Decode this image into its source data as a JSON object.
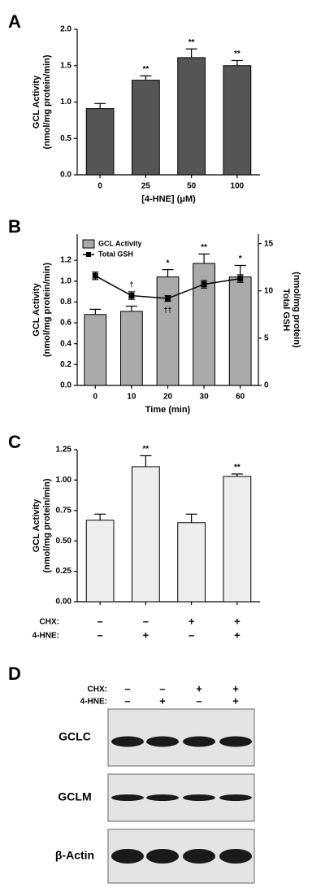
{
  "chart_data": [
    {
      "type": "bar",
      "panel": "A",
      "categories": [
        "0",
        "25",
        "50",
        "100"
      ],
      "values": [
        0.91,
        1.3,
        1.61,
        1.5
      ],
      "errors": [
        0.07,
        0.06,
        0.12,
        0.07
      ],
      "significance": [
        null,
        "**",
        "**",
        "**"
      ],
      "color": "#555555",
      "ylim": [
        0,
        2.0
      ],
      "yticks": [
        {
          "value": 0,
          "label": "0.0"
        },
        {
          "value": 0.5,
          "label": "0.5"
        },
        {
          "value": 1.0,
          "label": "1.0"
        },
        {
          "value": 1.5,
          "label": "1.5"
        },
        {
          "value": 2.0,
          "label": "2.0"
        }
      ],
      "ylabel": [
        "GCL Activity",
        "(nmol/mg protein/min)"
      ],
      "xlabel": "[4-HNE] (μM)"
    },
    {
      "type": "combo",
      "panel": "B",
      "categories": [
        "0",
        "10",
        "20",
        "30",
        "60"
      ],
      "series": [
        {
          "name": "GCL Activity",
          "type": "bar",
          "color": "#aaaaaa",
          "values": [
            0.68,
            0.71,
            1.04,
            1.17,
            1.04
          ],
          "errors": [
            0.05,
            0.05,
            0.07,
            0.09,
            0.11
          ],
          "significance": [
            null,
            null,
            "*",
            "**",
            "*"
          ]
        },
        {
          "name": "Total GSH",
          "type": "line",
          "axis": "y2",
          "color": "#000000",
          "values": [
            11.6,
            9.5,
            9.2,
            10.7,
            11.3
          ],
          "errors": [
            0.4,
            0.4,
            0.3,
            0.4,
            0.4
          ],
          "significance": [
            null,
            "†",
            "††",
            null,
            null
          ]
        }
      ],
      "ylim": [
        0,
        1.45
      ],
      "yticks": [
        {
          "value": 0,
          "label": "0.0"
        },
        {
          "value": 0.2,
          "label": "0.2"
        },
        {
          "value": 0.4,
          "label": "0.4"
        },
        {
          "value": 0.6,
          "label": "0.6"
        },
        {
          "value": 0.8,
          "label": "0.8"
        },
        {
          "value": 1.0,
          "label": "1.0"
        },
        {
          "value": 1.2,
          "label": "1.2"
        }
      ],
      "y2lim": [
        0,
        16
      ],
      "y2ticks": [
        0,
        5,
        10,
        15
      ],
      "ylabel": [
        "GCL Activity",
        "(nmol/mg protein/min)"
      ],
      "y2label": [
        "Total GSH",
        "(nmol/mg protein)"
      ],
      "xlabel": "Time (min)"
    },
    {
      "type": "bar",
      "panel": "C",
      "categories": [
        null,
        null,
        null,
        null
      ],
      "values": [
        0.67,
        1.11,
        0.65,
        1.03
      ],
      "errors": [
        0.05,
        0.09,
        0.07,
        0.02
      ],
      "significance": [
        null,
        "**",
        null,
        "**"
      ],
      "color": "#eeeeee",
      "ylim": [
        0,
        1.25
      ],
      "yticks": [
        {
          "value": 0,
          "label": "0.00"
        },
        {
          "value": 0.25,
          "label": "0.25"
        },
        {
          "value": 0.5,
          "label": "0.50"
        },
        {
          "value": 0.75,
          "label": "0.75"
        },
        {
          "value": 1.0,
          "label": "1.00"
        },
        {
          "value": 1.25,
          "label": "1.25"
        }
      ],
      "ylabel": [
        "GCL Activity",
        "(nmol/mg protein/min)"
      ],
      "conditions": [
        {
          "label": "CHX:",
          "values": [
            "–",
            "–",
            "+",
            "+"
          ]
        },
        {
          "label": "4-HNE:",
          "values": [
            "–",
            "+",
            "–",
            "+"
          ]
        }
      ]
    }
  ],
  "blot": {
    "panel": "D",
    "conditions": [
      {
        "label": "CHX:",
        "values": [
          "–",
          "–",
          "+",
          "+"
        ]
      },
      {
        "label": "4-HNE:",
        "values": [
          "–",
          "+",
          "–",
          "+"
        ]
      }
    ],
    "rows": [
      "GCLC",
      "GCLM",
      "β-Actin"
    ]
  }
}
